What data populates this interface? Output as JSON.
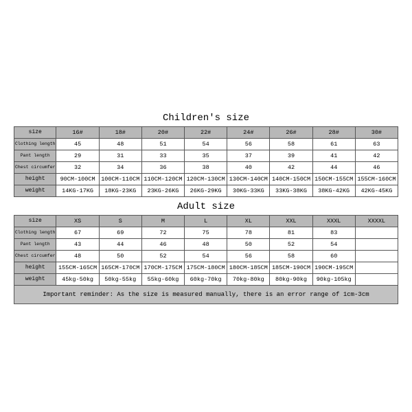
{
  "children": {
    "title": "Children's size",
    "row_labels": [
      "size",
      "Clothing length",
      "Pant length",
      "Chest circumference 1/2",
      "height",
      "weight"
    ],
    "sizes": [
      "16#",
      "18#",
      "20#",
      "22#",
      "24#",
      "26#",
      "28#",
      "30#"
    ],
    "clothing_length": [
      "45",
      "48",
      "51",
      "54",
      "56",
      "58",
      "61",
      "63"
    ],
    "pant_length": [
      "29",
      "31",
      "33",
      "35",
      "37",
      "39",
      "41",
      "42"
    ],
    "chest": [
      "32",
      "34",
      "36",
      "38",
      "40",
      "42",
      "44",
      "46"
    ],
    "height": [
      "90CM-100CM",
      "100CM-110CM",
      "110CM-120CM",
      "120CM-130CM",
      "130CM-140CM",
      "140CM-150CM",
      "150CM-155CM",
      "155CM-160CM"
    ],
    "weight": [
      "14KG-17KG",
      "18KG-23KG",
      "23KG-26KG",
      "26KG-29KG",
      "30KG-33KG",
      "33KG-38KG",
      "38KG-42KG",
      "42KG-45KG"
    ]
  },
  "adult": {
    "title": "Adult size",
    "row_labels": [
      "size",
      "Clothing length",
      "Pant length",
      "Chest circumference 1/2",
      "height",
      "weight"
    ],
    "sizes": [
      "XS",
      "S",
      "M",
      "L",
      "XL",
      "XXL",
      "XXXL",
      "XXXXL"
    ],
    "clothing_length": [
      "67",
      "69",
      "72",
      "75",
      "78",
      "81",
      "83",
      ""
    ],
    "pant_length": [
      "43",
      "44",
      "46",
      "48",
      "50",
      "52",
      "54",
      ""
    ],
    "chest": [
      "48",
      "50",
      "52",
      "54",
      "56",
      "58",
      "60",
      ""
    ],
    "height": [
      "155CM-165CM",
      "165CM-170CM",
      "170CM-175CM",
      "175CM-180CM",
      "180CM-185CM",
      "185CM-190CM",
      "190CM-195CM",
      ""
    ],
    "weight": [
      "45kg-50kg",
      "50kg-55kg",
      "55kg-60kg",
      "60kg-70kg",
      "70kg-80kg",
      "80kg-90kg",
      "90kg-105kg",
      ""
    ]
  },
  "reminder": "Important reminder: As the size is measured manually, there is an error range of 1cm-3cm",
  "style": {
    "header_bg": "#b8b8b8",
    "reminder_bg": "#c2c2c2",
    "border_color": "#555555",
    "font_family": "Courier New, monospace",
    "title_fontsize": 14,
    "cell_fontsize": 8.5
  }
}
